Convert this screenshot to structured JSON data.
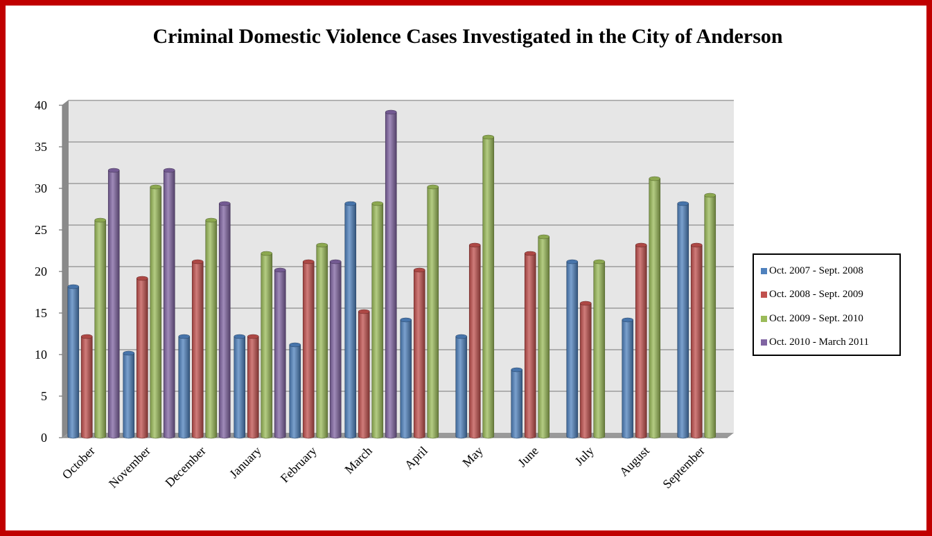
{
  "chart_data": {
    "type": "bar",
    "title": "Criminal Domestic Violence Cases Investigated in the City of Anderson",
    "xlabel": "",
    "ylabel": "",
    "ylim": [
      0,
      40
    ],
    "yticks": [
      0,
      5,
      10,
      15,
      20,
      25,
      30,
      35,
      40
    ],
    "categories": [
      "October",
      "November",
      "December",
      "January",
      "February",
      "March",
      "April",
      "May",
      "June",
      "July",
      "August",
      "September"
    ],
    "series": [
      {
        "name": "Oct. 2007 - Sept. 2008",
        "color": "#4f81bd",
        "values": [
          18,
          10,
          12,
          12,
          11,
          28,
          14,
          12,
          8,
          21,
          14,
          28
        ]
      },
      {
        "name": "Oct. 2008 - Sept. 2009",
        "color": "#c0504d",
        "values": [
          12,
          19,
          21,
          12,
          21,
          15,
          20,
          23,
          22,
          16,
          23,
          23
        ]
      },
      {
        "name": "Oct. 2009 - Sept. 2010",
        "color": "#9bbb59",
        "values": [
          26,
          30,
          26,
          22,
          23,
          28,
          30,
          36,
          24,
          21,
          31,
          29
        ]
      },
      {
        "name": "Oct. 2010 - March 2011",
        "color": "#8064a2",
        "values": [
          32,
          32,
          28,
          20,
          21,
          39,
          null,
          null,
          null,
          null,
          null,
          null
        ]
      }
    ],
    "grid": true,
    "legend_position": "right",
    "style": "3d-cylinder"
  }
}
